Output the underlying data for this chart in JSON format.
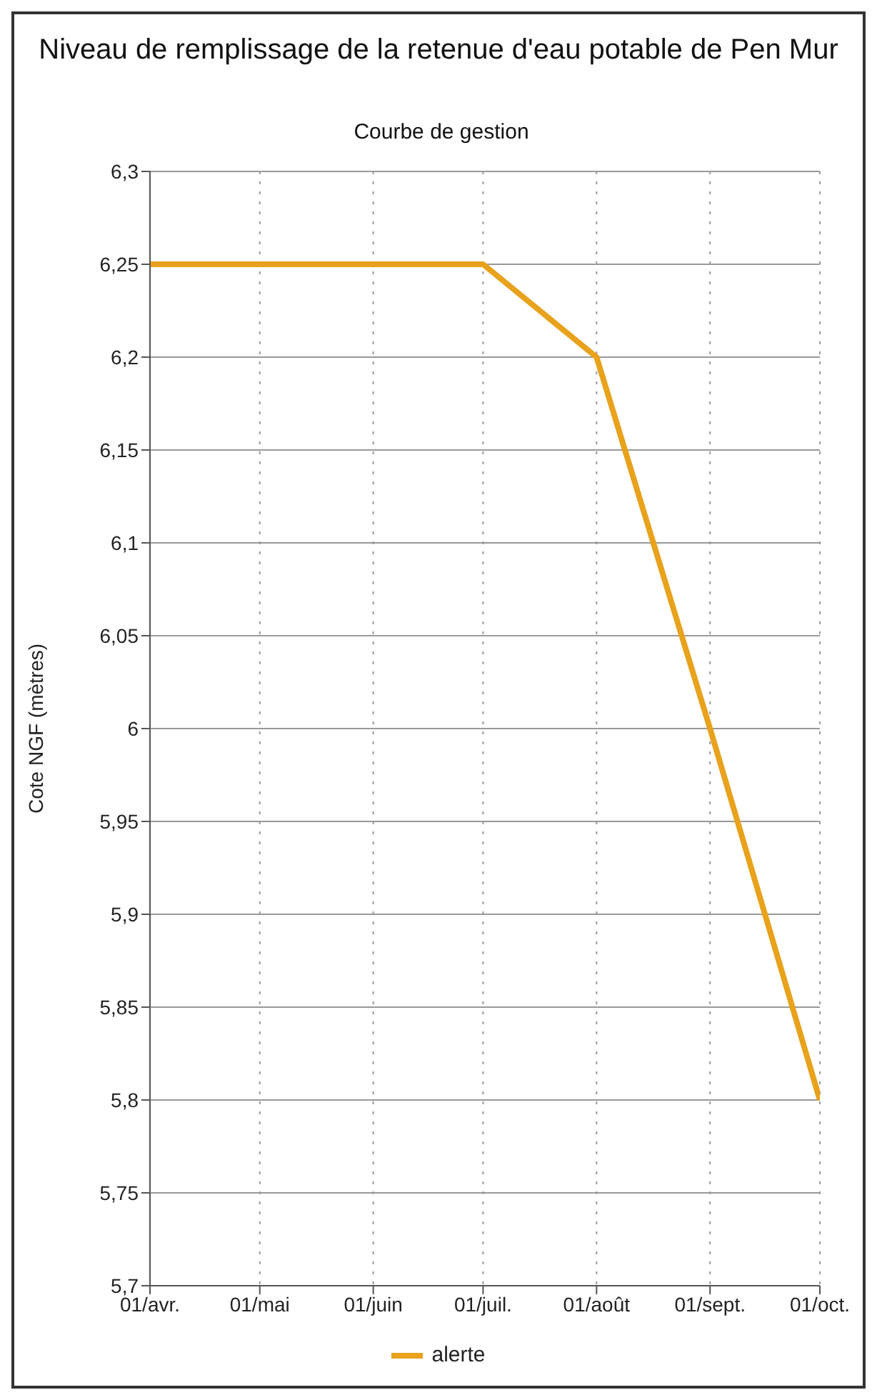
{
  "chart_data": {
    "type": "line",
    "title": "Niveau de remplissage de la retenue d'eau potable de Pen Mur",
    "subtitle": "Courbe de gestion",
    "ylabel": "Cote NGF (mètres)",
    "x": [
      "--04-01",
      "--05-01",
      "--06-01",
      "--07-01",
      "--08-01",
      "--09-01",
      "--10-01"
    ],
    "series": [
      {
        "name": "alerte",
        "color": "#e8a21c",
        "values": [
          6.25,
          6.25,
          6.25,
          6.25,
          6.2,
          6.0,
          5.8
        ]
      }
    ],
    "xlim": [
      "--04-01",
      "--10-01"
    ],
    "xticks": [
      {
        "value": "--04-01",
        "label": "01/avr."
      },
      {
        "value": "--05-01",
        "label": "01/mai"
      },
      {
        "value": "--06-01",
        "label": "01/juin"
      },
      {
        "value": "--07-01",
        "label": "01/juil."
      },
      {
        "value": "--08-01",
        "label": "01/août"
      },
      {
        "value": "--09-01",
        "label": "01/sept."
      },
      {
        "value": "--10-01",
        "label": "01/oct."
      }
    ],
    "ylim": [
      5.7,
      6.3
    ],
    "yticks": [
      {
        "value": 5.7,
        "label": "5,7"
      },
      {
        "value": 5.75,
        "label": "5,75"
      },
      {
        "value": 5.8,
        "label": "5,8"
      },
      {
        "value": 5.85,
        "label": "5,85"
      },
      {
        "value": 5.9,
        "label": "5,9"
      },
      {
        "value": 5.95,
        "label": "5,95"
      },
      {
        "value": 6,
        "label": "6"
      },
      {
        "value": 6.05,
        "label": "6,05"
      },
      {
        "value": 6.1,
        "label": "6,1"
      },
      {
        "value": 6.15,
        "label": "6,15"
      },
      {
        "value": 6.2,
        "label": "6,2"
      },
      {
        "value": 6.25,
        "label": "6,25"
      },
      {
        "value": 6.3,
        "label": "6,3"
      }
    ],
    "grid": true,
    "legend": "bottom",
    "marker": "none",
    "line_style": "solid"
  }
}
